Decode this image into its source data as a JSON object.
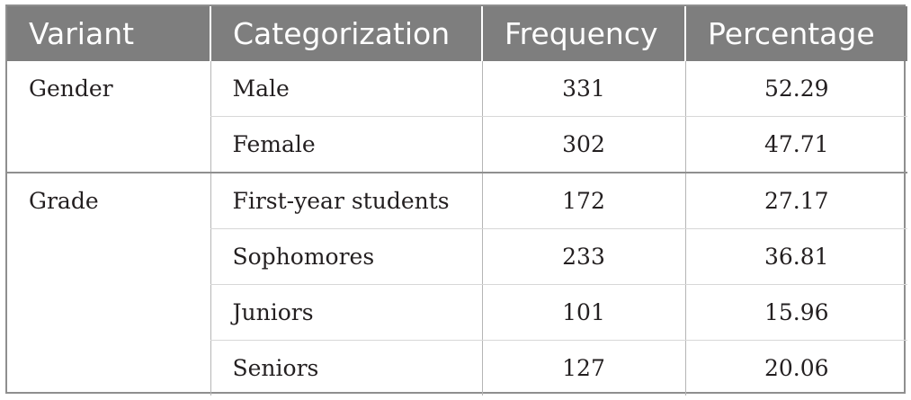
{
  "table": {
    "headers": [
      "Variant",
      "Categorization",
      "Frequency",
      "Percentage"
    ],
    "groups": [
      {
        "variant": "Gender",
        "rows": [
          {
            "category": "Male",
            "frequency": "331",
            "percentage": "52.29"
          },
          {
            "category": "Female",
            "frequency": "302",
            "percentage": "47.71"
          }
        ]
      },
      {
        "variant": "Grade",
        "rows": [
          {
            "category": "First-year students",
            "frequency": "172",
            "percentage": "27.17"
          },
          {
            "category": "Sophomores",
            "frequency": "233",
            "percentage": "36.81"
          },
          {
            "category": "Juniors",
            "frequency": "101",
            "percentage": "15.96"
          },
          {
            "category": "Seniors",
            "frequency": "127",
            "percentage": "20.06"
          }
        ]
      }
    ]
  },
  "colors": {
    "header_bg": "#7e7e7e",
    "header_text": "#ffffff",
    "border": "#8f8f8f",
    "body_text": "#231f20"
  }
}
